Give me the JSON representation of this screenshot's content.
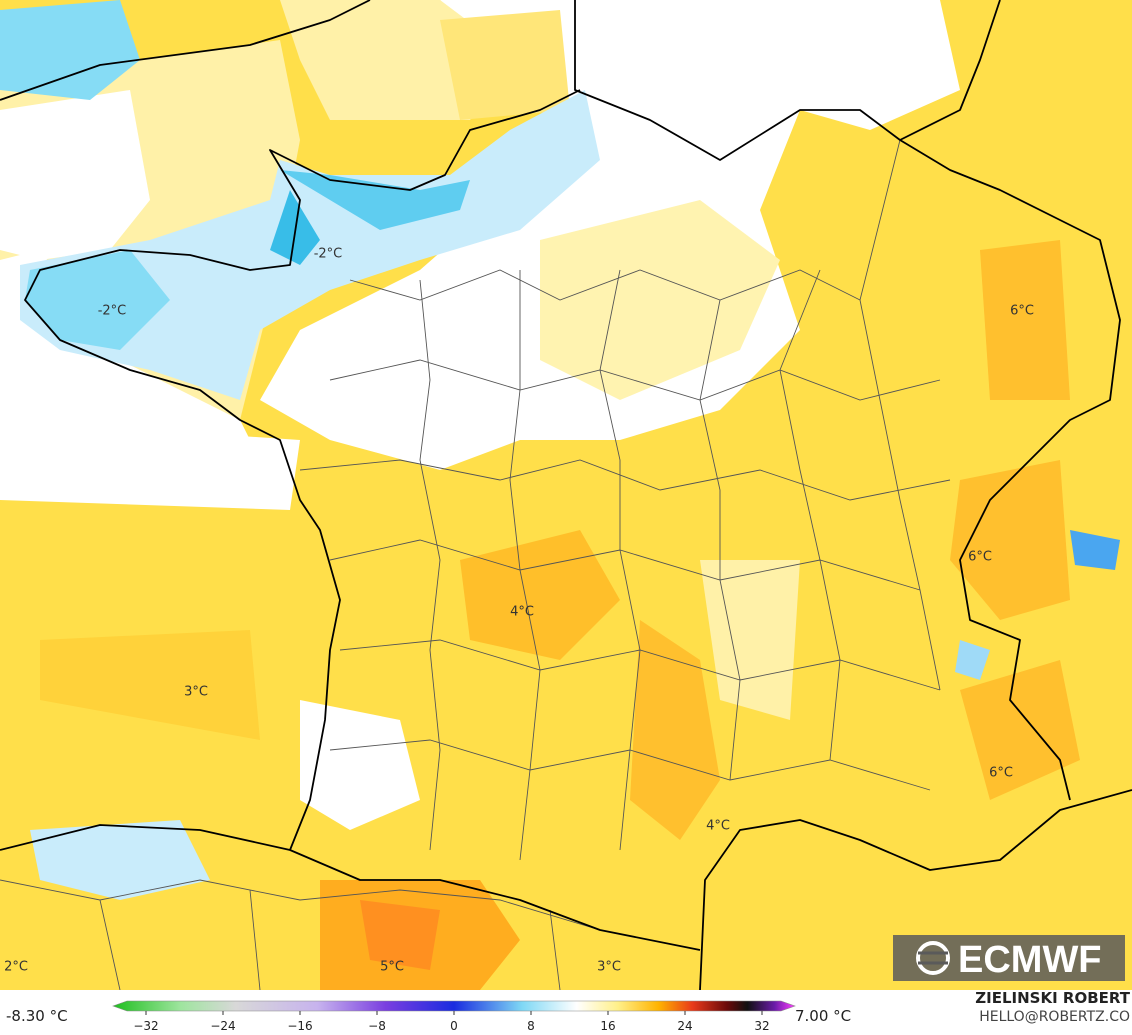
{
  "map": {
    "labels": [
      "-2°C",
      "-2°C",
      "6°C",
      "6°C",
      "4°C",
      "3°C",
      "6°C",
      "4°C",
      "5°C",
      "3°C",
      "2°C"
    ],
    "logo": "ECMWF",
    "colorbar": {
      "min_label": "-8.30 °C",
      "max_label": "7.00 °C",
      "range": [
        -32,
        32
      ],
      "ticks": [
        {
          "value": -32,
          "label": "−32"
        },
        {
          "value": -24,
          "label": "−24"
        },
        {
          "value": -16,
          "label": "−16"
        },
        {
          "value": -8,
          "label": "−8"
        },
        0,
        8,
        16,
        24,
        32
      ]
    },
    "credit": {
      "author": "ZIELINSKI ROBERT",
      "contact": "HELLO@ROBERTZ.CO"
    }
  }
}
